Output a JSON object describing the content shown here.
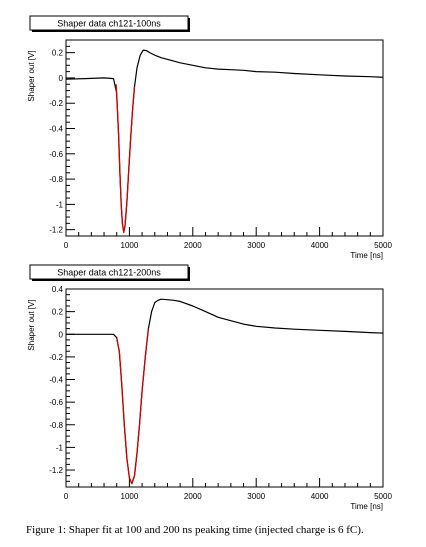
{
  "figure": {
    "caption": "Figure 1: Shaper fit at 100 and 200 ns peaking time (injected charge is 6 fC)."
  },
  "colors": {
    "data": "#000000",
    "fit": "#cc0000",
    "frame": "#000000"
  },
  "chart_data": [
    {
      "type": "line",
      "title": "Shaper data ch121-100ns",
      "xlabel": "Time [ns]",
      "ylabel": "Shaper out [V]",
      "xlim": [
        0,
        5000
      ],
      "ylim": [
        -1.25,
        0.3
      ],
      "xticks": [
        0,
        1000,
        2000,
        3000,
        4000,
        5000
      ],
      "yticks": [
        -1.2,
        -1,
        -0.8,
        -0.6,
        -0.4,
        -0.2,
        0,
        0.2
      ],
      "yticklabels": [
        "-1.2",
        "-1",
        "-0.8",
        "-0.6",
        "-0.4",
        "-0.2",
        "0",
        "0.2"
      ],
      "series": [
        {
          "role": "data",
          "x": [
            0,
            300,
            600,
            750,
            800,
            830,
            850,
            870,
            890,
            910,
            930,
            960,
            990,
            1020,
            1050,
            1080,
            1120,
            1170,
            1220,
            1270,
            1320,
            1400,
            1500,
            1650,
            1800,
            2000,
            2200,
            2400,
            2600,
            2800,
            3000,
            3300,
            3600,
            4000,
            4400,
            4800,
            5000
          ],
          "y": [
            -0.01,
            -0.005,
            0.0,
            -0.005,
            -0.12,
            -0.45,
            -0.75,
            -1.0,
            -1.15,
            -1.22,
            -1.17,
            -0.98,
            -0.72,
            -0.47,
            -0.25,
            -0.07,
            0.08,
            0.18,
            0.22,
            0.215,
            0.2,
            0.18,
            0.16,
            0.14,
            0.12,
            0.1,
            0.08,
            0.07,
            0.065,
            0.06,
            0.05,
            0.045,
            0.035,
            0.025,
            0.015,
            0.01,
            0.005
          ]
        },
        {
          "role": "fit",
          "x": [
            790,
            810,
            830,
            850,
            870,
            890,
            910,
            930,
            960,
            990,
            1020,
            1050,
            1080
          ],
          "y": [
            -0.05,
            -0.25,
            -0.45,
            -0.75,
            -1.0,
            -1.15,
            -1.22,
            -1.17,
            -0.98,
            -0.72,
            -0.47,
            -0.25,
            -0.07
          ]
        }
      ]
    },
    {
      "type": "line",
      "title": "Shaper data ch121-200ns",
      "xlabel": "Time [ns]",
      "ylabel": "Shaper out [V]",
      "xlim": [
        0,
        5000
      ],
      "ylim": [
        -1.35,
        0.4
      ],
      "xticks": [
        0,
        1000,
        2000,
        3000,
        4000,
        5000
      ],
      "yticks": [
        -1.2,
        -1,
        -0.8,
        -0.6,
        -0.4,
        -0.2,
        0,
        0.2,
        0.4
      ],
      "yticklabels": [
        "-1.2",
        "-1",
        "-0.8",
        "-0.6",
        "-0.4",
        "-0.2",
        "0",
        "0.2",
        "0.4"
      ],
      "series": [
        {
          "role": "data",
          "x": [
            0,
            300,
            600,
            750,
            800,
            840,
            880,
            920,
            960,
            1000,
            1040,
            1080,
            1120,
            1160,
            1200,
            1250,
            1300,
            1350,
            1400,
            1450,
            1500,
            1600,
            1700,
            1800,
            2000,
            2200,
            2400,
            2600,
            2800,
            3000,
            3300,
            3600,
            4000,
            4400,
            4800,
            5000
          ],
          "y": [
            0.0,
            0.0,
            0.0,
            0.0,
            -0.03,
            -0.15,
            -0.45,
            -0.8,
            -1.1,
            -1.27,
            -1.32,
            -1.25,
            -1.05,
            -0.8,
            -0.5,
            -0.2,
            0.05,
            0.2,
            0.28,
            0.3,
            0.31,
            0.305,
            0.3,
            0.29,
            0.25,
            0.2,
            0.15,
            0.12,
            0.09,
            0.07,
            0.055,
            0.045,
            0.035,
            0.025,
            0.015,
            0.01
          ]
        },
        {
          "role": "fit",
          "x": [
            800,
            840,
            880,
            920,
            960,
            1000,
            1040,
            1080,
            1120,
            1160,
            1200,
            1250,
            1300
          ],
          "y": [
            -0.03,
            -0.15,
            -0.45,
            -0.8,
            -1.1,
            -1.27,
            -1.32,
            -1.25,
            -1.05,
            -0.8,
            -0.5,
            -0.2,
            0.05
          ]
        }
      ]
    }
  ]
}
